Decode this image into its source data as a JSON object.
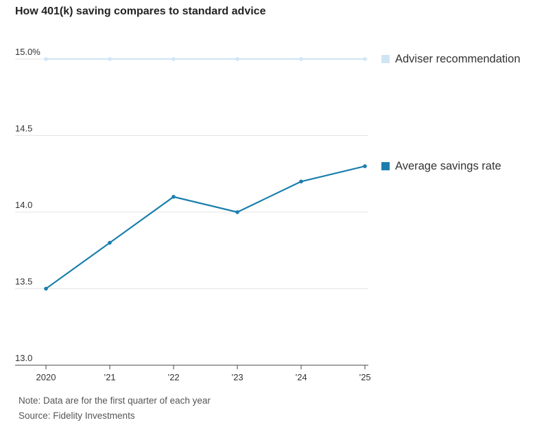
{
  "chart_data": {
    "type": "line",
    "title": "How 401(k) saving compares to standard advice",
    "categories": [
      "2020",
      "’21",
      "’22",
      "’23",
      "’24",
      "’25"
    ],
    "y_ticks": [
      "15.0%",
      "14.5",
      "14.0",
      "13.5",
      "13.0"
    ],
    "y_tick_values": [
      15.0,
      14.5,
      14.0,
      13.5,
      13.0
    ],
    "ylim": [
      13.0,
      15.0
    ],
    "grid": true,
    "legend_placement": "right",
    "series": [
      {
        "name": "Adviser recommendation",
        "values": [
          15.0,
          15.0,
          15.0,
          15.0,
          15.0,
          15.0
        ],
        "color": "#d0e5f4"
      },
      {
        "name": "Average savings rate",
        "values": [
          13.5,
          13.8,
          14.1,
          14.0,
          14.2,
          14.3
        ],
        "color": "#1a7fad"
      }
    ],
    "notes": {
      "note": "Note: Data are for the first quarter of each year",
      "source": "Source: Fidelity Investments"
    }
  }
}
